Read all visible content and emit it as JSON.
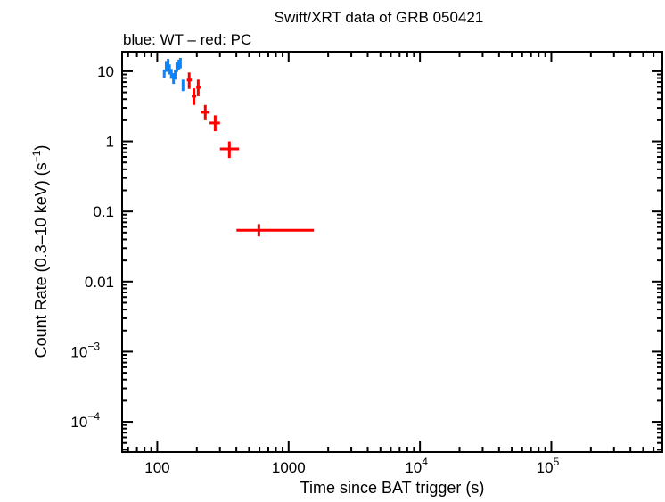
{
  "chart_data": {
    "type": "scatter",
    "title": "Swift/XRT data of GRB 050421",
    "subtitle": "blue: WT – red: PC",
    "xlabel": "Time since BAT trigger (s)",
    "ylabel": "Count Rate (0.3–10 keV) (s",
    "ylabel_sup": "−1",
    "ylabel_tail": ")",
    "xscale": "log",
    "yscale": "log",
    "xlim": [
      54,
      700000
    ],
    "ylim": [
      3.7e-05,
      19
    ],
    "grid": false,
    "x_ticks": [
      {
        "value": 100,
        "base": "100",
        "exp": ""
      },
      {
        "value": 1000,
        "base": "1000",
        "exp": ""
      },
      {
        "value": 10000,
        "base": "10",
        "exp": "4"
      },
      {
        "value": 100000,
        "base": "10",
        "exp": "5"
      }
    ],
    "y_ticks": [
      {
        "value": 10,
        "base": "10",
        "exp": ""
      },
      {
        "value": 1,
        "base": "1",
        "exp": ""
      },
      {
        "value": 0.1,
        "base": "0.1",
        "exp": ""
      },
      {
        "value": 0.01,
        "base": "0.01",
        "exp": ""
      },
      {
        "value": 0.001,
        "base": "10",
        "exp": "−3"
      },
      {
        "value": 0.0001,
        "base": "10",
        "exp": "−4"
      }
    ],
    "series": [
      {
        "name": "WT",
        "color": "#0a84ff",
        "points": [
          {
            "x": 113,
            "y": 9.2,
            "xlo": 112,
            "xhi": 115,
            "ylo": 8.0,
            "yhi": 10.6
          },
          {
            "x": 117,
            "y": 11.6,
            "xlo": 115,
            "xhi": 119,
            "ylo": 9.8,
            "yhi": 14.0
          },
          {
            "x": 121,
            "y": 12.6,
            "xlo": 119,
            "xhi": 123,
            "ylo": 10.6,
            "yhi": 15.0
          },
          {
            "x": 124,
            "y": 10.6,
            "xlo": 123,
            "xhi": 126,
            "ylo": 9.0,
            "yhi": 12.5
          },
          {
            "x": 128,
            "y": 9.2,
            "xlo": 126,
            "xhi": 130,
            "ylo": 7.8,
            "yhi": 10.8
          },
          {
            "x": 133,
            "y": 7.9,
            "xlo": 130,
            "xhi": 135,
            "ylo": 6.6,
            "yhi": 9.4
          },
          {
            "x": 137,
            "y": 9.0,
            "xlo": 135,
            "xhi": 139,
            "ylo": 7.6,
            "yhi": 10.6
          },
          {
            "x": 141,
            "y": 11.6,
            "xlo": 139,
            "xhi": 143,
            "ylo": 9.8,
            "yhi": 13.6
          },
          {
            "x": 146,
            "y": 12.6,
            "xlo": 143,
            "xhi": 148,
            "ylo": 10.6,
            "yhi": 14.6
          },
          {
            "x": 150,
            "y": 13.4,
            "xlo": 148,
            "xhi": 152,
            "ylo": 11.0,
            "yhi": 15.5
          },
          {
            "x": 157,
            "y": 6.4,
            "xlo": 155,
            "xhi": 159,
            "ylo": 5.2,
            "yhi": 7.6
          }
        ]
      },
      {
        "name": "PC",
        "color": "#ff0000",
        "points": [
          {
            "x": 175,
            "y": 7.5,
            "xlo": 168,
            "xhi": 183,
            "ylo": 5.6,
            "yhi": 9.6
          },
          {
            "x": 190,
            "y": 4.4,
            "xlo": 183,
            "xhi": 198,
            "ylo": 3.3,
            "yhi": 5.7
          },
          {
            "x": 205,
            "y": 5.9,
            "xlo": 198,
            "xhi": 214,
            "ylo": 4.4,
            "yhi": 7.6
          },
          {
            "x": 232,
            "y": 2.6,
            "xlo": 214,
            "xhi": 250,
            "ylo": 2.0,
            "yhi": 3.3
          },
          {
            "x": 276,
            "y": 1.83,
            "xlo": 250,
            "xhi": 300,
            "ylo": 1.4,
            "yhi": 2.35
          },
          {
            "x": 354,
            "y": 0.78,
            "xlo": 300,
            "xhi": 420,
            "ylo": 0.58,
            "yhi": 1.0
          },
          {
            "x": 593,
            "y": 0.054,
            "xlo": 401,
            "xhi": 1560,
            "ylo": 0.044,
            "yhi": 0.066
          }
        ]
      }
    ]
  }
}
